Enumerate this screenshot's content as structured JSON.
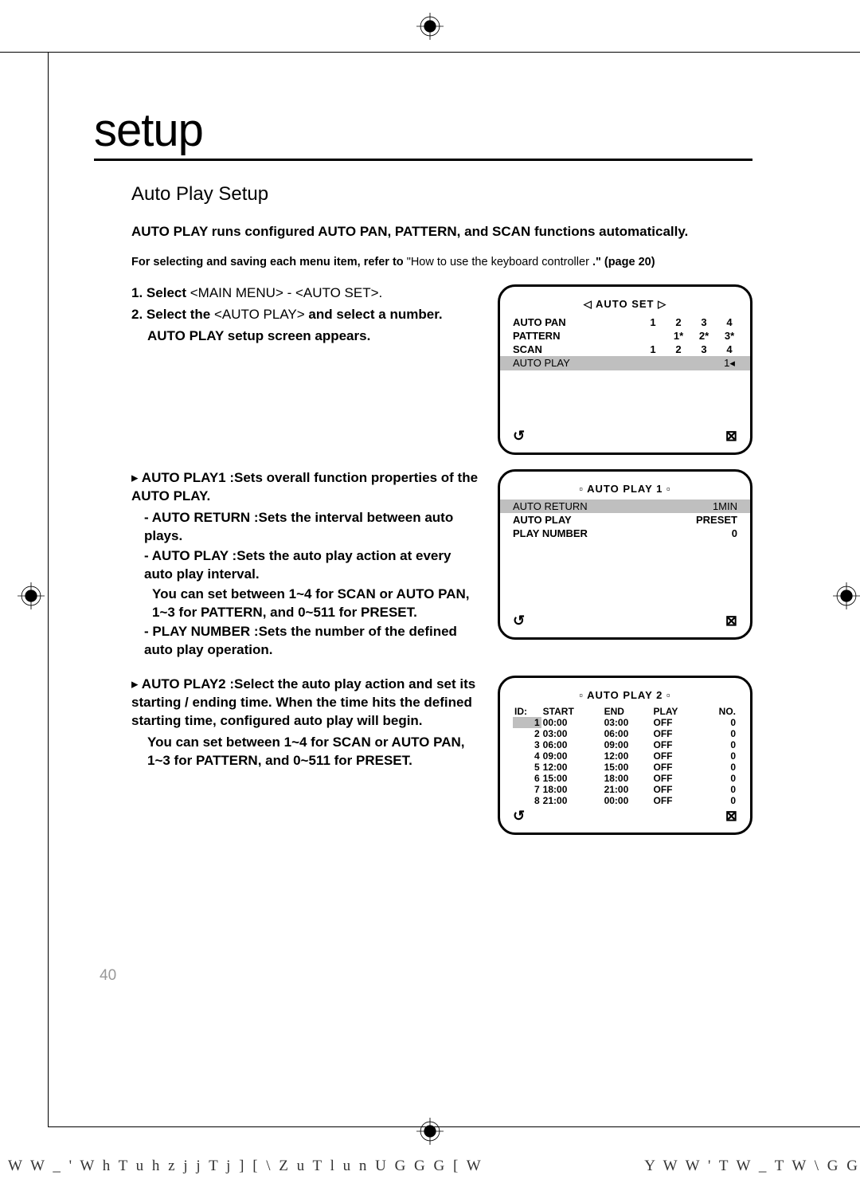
{
  "page": {
    "title": "setup",
    "subtitle": "Auto Play Setup",
    "lead": "AUTO PLAY runs configured AUTO PAN, PATTERN, and SCAN functions automatically.",
    "ref_note_a": "For selecting and saving each menu item, refer to",
    "ref_note_b": "\"How to use the keyboard controller",
    "ref_note_c": ".\" (page 20)",
    "step1_a": "1.",
    "step1_b": "Select",
    "step1_c": "<MAIN MENU> - <AUTO SET>.",
    "step2_a": "2.",
    "step2_b": "Select the",
    "step2_c": "<AUTO PLAY>",
    "step2_d": "and select a number.",
    "step2_e": "AUTO PLAY setup screen appears.",
    "r1_head": "AUTO PLAY1 :Sets overall function properties of the AUTO PLAY.",
    "r1_d1": "AUTO RETURN :Sets the interval between auto plays.",
    "r1_d2": "AUTO PLAY :Sets the auto play action at every auto play interval.",
    "r1_d2b": "You can set between 1~4 for SCAN or AUTO PAN, 1~3 for PATTERN, and 0~511 for PRESET.",
    "r1_d3": "PLAY NUMBER :Sets the number of the defined auto play operation.",
    "r2_head": "AUTO PLAY2 :Select the auto play action and set its starting / ending time. When the time hits the defined starting time, configured auto play will begin.",
    "r2_b": "You can set between 1~4 for SCAN or AUTO PAN, 1~3 for PATTERN, and 0~511 for PRESET.",
    "page_number": "40",
    "footer_left": "W W _ ' W h T u h   z j j T j ] [ \\ Z u T l u n U       G G G [ W",
    "footer_right": "Y W W ' T W _ T W \\ G G"
  },
  "osd1": {
    "title": "◁ AUTO SET ▷",
    "rows": [
      {
        "k": "AUTO PAN",
        "v": [
          "1",
          "2",
          "3",
          "4"
        ]
      },
      {
        "k": "PATTERN",
        "v": [
          "",
          "1*",
          "2*",
          "3*"
        ]
      },
      {
        "k": "SCAN",
        "v": [
          "1",
          "2",
          "3",
          "4"
        ]
      }
    ],
    "hl": {
      "k": "AUTO PLAY",
      "v": [
        "",
        "",
        "",
        "1◂"
      ]
    }
  },
  "osd2": {
    "title": "▫ AUTO PLAY 1 ▫",
    "hl": {
      "k": "AUTO RETURN",
      "v": "1MIN"
    },
    "rows": [
      {
        "k": "AUTO PLAY",
        "v": "PRESET"
      },
      {
        "k": "PLAY NUMBER",
        "v": "0"
      }
    ]
  },
  "osd3": {
    "title": "▫ AUTO PLAY 2 ▫",
    "head": [
      "ID:",
      "START",
      "END",
      "PLAY",
      "NO."
    ],
    "rows": [
      [
        "1",
        "00:00",
        "03:00",
        "OFF",
        "0"
      ],
      [
        "2",
        "03:00",
        "06:00",
        "OFF",
        "0"
      ],
      [
        "3",
        "06:00",
        "09:00",
        "OFF",
        "0"
      ],
      [
        "4",
        "09:00",
        "12:00",
        "OFF",
        "0"
      ],
      [
        "5",
        "12:00",
        "15:00",
        "OFF",
        "0"
      ],
      [
        "6",
        "15:00",
        "18:00",
        "OFF",
        "0"
      ],
      [
        "7",
        "18:00",
        "21:00",
        "OFF",
        "0"
      ],
      [
        "8",
        "21:00",
        "00:00",
        "OFF",
        "0"
      ]
    ]
  },
  "icons": {
    "back": "↺",
    "close": "⊠"
  }
}
